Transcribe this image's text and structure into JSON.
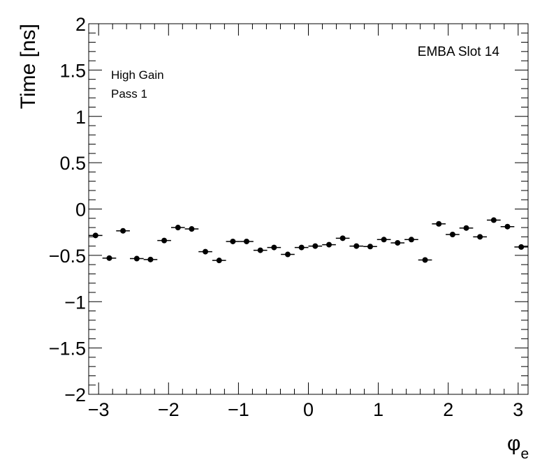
{
  "chart_data": {
    "type": "scatter",
    "ylabel": "Time [ns]",
    "xlabel_symbol": "φ",
    "xlabel_subscript": "e",
    "xlim": [
      -3.14159,
      3.14159
    ],
    "ylim": [
      -2,
      2
    ],
    "x_ticks": [
      -3,
      -2,
      -1,
      0,
      1,
      2,
      3
    ],
    "x_tick_labels": [
      "−3",
      "−2",
      "−1",
      "0",
      "1",
      "2",
      "3"
    ],
    "y_ticks": [
      -2,
      -1.5,
      -1,
      -0.5,
      0,
      0.5,
      1,
      1.5,
      2
    ],
    "y_tick_labels": [
      "−2",
      "−1.5",
      "−1",
      "−0.5",
      "0",
      "0.5",
      "1",
      "1.5",
      "2"
    ],
    "grid": false,
    "bin_width": 0.19635,
    "points": [
      {
        "x": -3.044,
        "y": -0.285
      },
      {
        "x": -2.847,
        "y": -0.53
      },
      {
        "x": -2.651,
        "y": -0.235
      },
      {
        "x": -2.454,
        "y": -0.535
      },
      {
        "x": -2.258,
        "y": -0.545
      },
      {
        "x": -2.062,
        "y": -0.34
      },
      {
        "x": -1.865,
        "y": -0.2
      },
      {
        "x": -1.669,
        "y": -0.215
      },
      {
        "x": -1.473,
        "y": -0.46
      },
      {
        "x": -1.276,
        "y": -0.555
      },
      {
        "x": -1.08,
        "y": -0.35
      },
      {
        "x": -0.884,
        "y": -0.35
      },
      {
        "x": -0.687,
        "y": -0.445
      },
      {
        "x": -0.491,
        "y": -0.415
      },
      {
        "x": -0.295,
        "y": -0.49
      },
      {
        "x": -0.098,
        "y": -0.415
      },
      {
        "x": 0.098,
        "y": -0.4
      },
      {
        "x": 0.295,
        "y": -0.385
      },
      {
        "x": 0.491,
        "y": -0.315
      },
      {
        "x": 0.687,
        "y": -0.4
      },
      {
        "x": 0.884,
        "y": -0.405
      },
      {
        "x": 1.08,
        "y": -0.33
      },
      {
        "x": 1.276,
        "y": -0.365
      },
      {
        "x": 1.473,
        "y": -0.33
      },
      {
        "x": 1.669,
        "y": -0.55
      },
      {
        "x": 1.865,
        "y": -0.16
      },
      {
        "x": 2.062,
        "y": -0.275
      },
      {
        "x": 2.258,
        "y": -0.205
      },
      {
        "x": 2.454,
        "y": -0.3
      },
      {
        "x": 2.651,
        "y": -0.12
      },
      {
        "x": 2.847,
        "y": -0.19
      },
      {
        "x": 3.044,
        "y": -0.41
      }
    ],
    "annotations": {
      "gain": "High Gain",
      "pass": "Pass 1",
      "module": "EMBA Slot 14"
    },
    "marker_color": "#000000"
  }
}
